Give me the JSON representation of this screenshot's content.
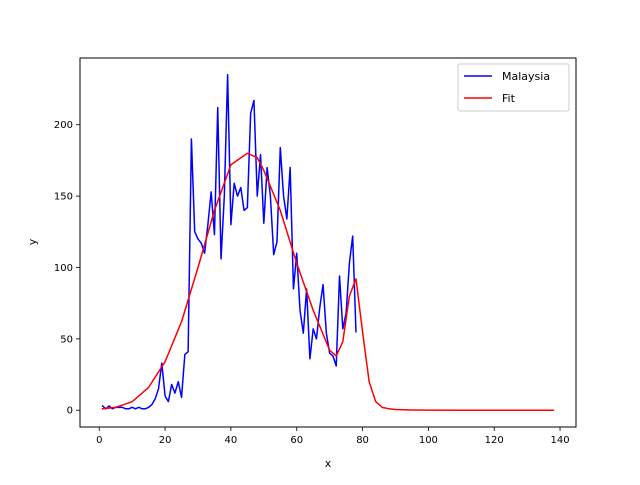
{
  "chart_data": {
    "type": "line",
    "title": "",
    "xlabel": "x",
    "ylabel": "y",
    "xlim": [
      -5.85,
      144.85
    ],
    "ylim": [
      -11.75,
      246.75
    ],
    "x_ticks": [
      0,
      20,
      40,
      60,
      80,
      100,
      120,
      140
    ],
    "y_ticks": [
      0,
      50,
      100,
      150,
      200
    ],
    "grid": false,
    "legend_position": "top-right",
    "series": [
      {
        "name": "Malaysia",
        "color": "#0000ff",
        "x": [
          1,
          2,
          3,
          4,
          5,
          6,
          7,
          8,
          9,
          10,
          11,
          12,
          13,
          14,
          15,
          16,
          17,
          18,
          19,
          20,
          21,
          22,
          23,
          24,
          25,
          26,
          27,
          28,
          29,
          30,
          31,
          32,
          33,
          34,
          35,
          36,
          37,
          38,
          39,
          40,
          41,
          42,
          43,
          44,
          45,
          46,
          47,
          48,
          49,
          50,
          51,
          52,
          53,
          54,
          55,
          56,
          57,
          58,
          59,
          60,
          61,
          62,
          63,
          64,
          65,
          66,
          67,
          68,
          69,
          70,
          71,
          72,
          73,
          74,
          75,
          76,
          77,
          78
        ],
        "y": [
          3,
          1,
          3,
          1,
          2,
          2,
          2,
          1,
          1,
          2,
          1,
          2,
          1,
          1,
          2,
          4,
          8,
          15,
          33,
          10,
          6,
          18,
          12,
          20,
          9,
          39,
          41,
          190,
          125,
          120,
          117,
          110,
          130,
          153,
          123,
          212,
          106,
          150,
          235,
          130,
          159,
          150,
          156,
          140,
          142,
          208,
          217,
          150,
          179,
          131,
          170,
          150,
          109,
          118,
          184,
          150,
          134,
          170,
          85,
          110,
          70,
          54,
          85,
          36,
          57,
          50,
          72,
          88,
          54,
          40,
          38,
          31,
          94,
          57,
          68,
          103,
          122,
          55
        ]
      },
      {
        "name": "Fit",
        "color": "#ff0000",
        "x": [
          1,
          5,
          10,
          15,
          20,
          25,
          30,
          35,
          40,
          45,
          48,
          50,
          55,
          60,
          65,
          70,
          72,
          74,
          76,
          78,
          80,
          82,
          84,
          86,
          88,
          90,
          95,
          100,
          110,
          120,
          130,
          138
        ],
        "y": [
          1,
          2,
          6,
          16,
          34,
          62,
          100,
          140,
          172,
          180,
          177,
          168,
          140,
          103,
          70,
          42,
          38,
          48,
          80,
          92,
          55,
          20,
          6,
          2,
          1,
          0.5,
          0.2,
          0.1,
          0,
          0,
          0,
          0
        ]
      }
    ]
  }
}
